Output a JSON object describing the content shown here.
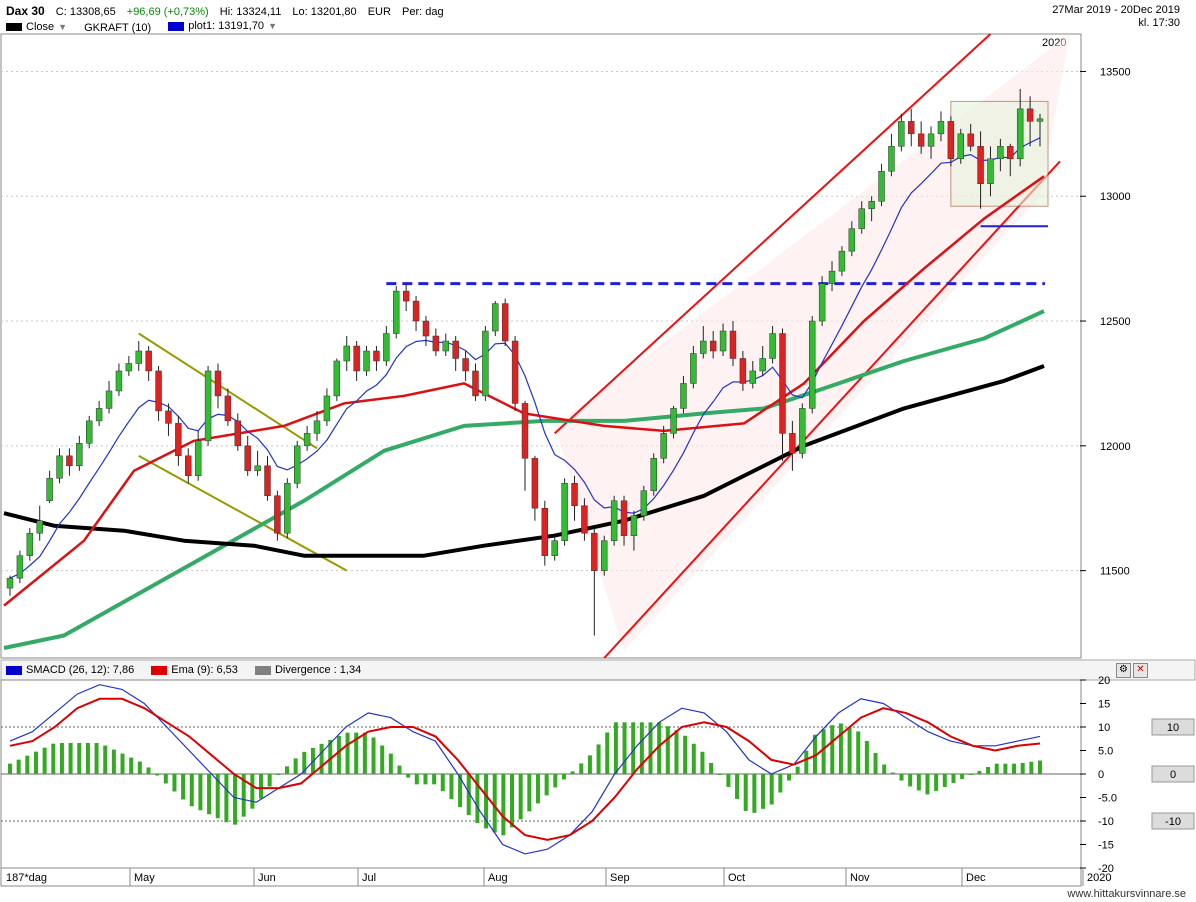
{
  "header": {
    "symbol": "Dax 30",
    "close": "C: 13308,65",
    "change": "+96,69 (+0,73%)",
    "high": "Hi: 13324,11",
    "low": "Lo: 13201,80",
    "currency": "EUR",
    "period": "Per: dag",
    "date_range": "27Mar 2019 - 20Dec 2019",
    "time": "kl. 17:30",
    "legend": [
      {
        "label": "Close",
        "color": "#000000",
        "dropdown": true
      },
      {
        "label": "GKRAFT (10)",
        "color": "",
        "dropdown": false
      },
      {
        "label": "plot1: 13191,70",
        "color": "#0000cc",
        "dropdown": true
      }
    ]
  },
  "sub_header": {
    "legend": [
      {
        "label": "SMACD (26, 12): 7,86",
        "color": "#0000cc"
      },
      {
        "label": "Ema (9): 6,53",
        "color": "#dd0000"
      },
      {
        "label": "Divergence : 1,34",
        "color": "#808080"
      }
    ]
  },
  "footer": {
    "text": "www.hittakursvinnare.se",
    "period_label": "187*dag"
  },
  "colors": {
    "up": "#33bb33",
    "down": "#dd2222",
    "ma200": "#000000",
    "ma100": "#33aa66",
    "ma50": "#dd1111",
    "blue": "#2222cc",
    "channel": "#ee1111",
    "olive": "#999900",
    "hist": "#33aa22"
  },
  "chart_data": [
    {
      "type": "candlestick",
      "x_axis": {
        "labels": [
          "May",
          "Jun",
          "Jul",
          "Aug",
          "Sep",
          "Oct",
          "Nov",
          "Dec",
          "2020"
        ]
      },
      "y_axis": {
        "ticks": [
          11500,
          12000,
          12500,
          13000,
          13500
        ],
        "range": [
          11150,
          13650
        ]
      },
      "year_marker": "2020",
      "support_line": 12650,
      "series": [
        {
          "name": "Close",
          "color": "#000000"
        },
        {
          "name": "plot1",
          "color": "#0000cc"
        }
      ],
      "moving_averages": {
        "ma200": [
          [
            0,
            11730
          ],
          [
            50,
            11680
          ],
          [
            120,
            11660
          ],
          [
            180,
            11620
          ],
          [
            250,
            11600
          ],
          [
            300,
            11560
          ],
          [
            350,
            11560
          ],
          [
            420,
            11560
          ],
          [
            480,
            11600
          ],
          [
            550,
            11640
          ],
          [
            620,
            11700
          ],
          [
            700,
            11800
          ],
          [
            800,
            12000
          ],
          [
            900,
            12150
          ],
          [
            1000,
            12260
          ],
          [
            1040,
            12320
          ]
        ],
        "ma100": [
          [
            0,
            11190
          ],
          [
            60,
            11240
          ],
          [
            140,
            11420
          ],
          [
            220,
            11600
          ],
          [
            300,
            11780
          ],
          [
            380,
            11980
          ],
          [
            460,
            12080
          ],
          [
            540,
            12100
          ],
          [
            620,
            12100
          ],
          [
            700,
            12130
          ],
          [
            760,
            12150
          ],
          [
            820,
            12230
          ],
          [
            900,
            12340
          ],
          [
            980,
            12430
          ],
          [
            1040,
            12540
          ]
        ],
        "ma50": [
          [
            0,
            11360
          ],
          [
            80,
            11620
          ],
          [
            130,
            11900
          ],
          [
            190,
            12020
          ],
          [
            280,
            12080
          ],
          [
            340,
            12170
          ],
          [
            400,
            12200
          ],
          [
            460,
            12250
          ],
          [
            520,
            12130
          ],
          [
            600,
            12080
          ],
          [
            660,
            12060
          ],
          [
            740,
            12090
          ],
          [
            800,
            12250
          ],
          [
            860,
            12500
          ],
          [
            920,
            12710
          ],
          [
            980,
            12910
          ],
          [
            1040,
            13080
          ]
        ]
      },
      "candles": [
        [
          11430,
          11470,
          11400,
          11480
        ],
        [
          11470,
          11560,
          11450,
          11580
        ],
        [
          11560,
          11650,
          11540,
          11670
        ],
        [
          11650,
          11700,
          11620,
          11760
        ],
        [
          11780,
          11870,
          11770,
          11900
        ],
        [
          11870,
          11960,
          11850,
          11990
        ],
        [
          11960,
          11920,
          11880,
          11990
        ],
        [
          11920,
          12010,
          11900,
          12040
        ],
        [
          12010,
          12100,
          11990,
          12120
        ],
        [
          12100,
          12150,
          12080,
          12180
        ],
        [
          12150,
          12220,
          12130,
          12260
        ],
        [
          12220,
          12300,
          12200,
          12330
        ],
        [
          12300,
          12330,
          12280,
          12360
        ],
        [
          12330,
          12380,
          12300,
          12420
        ],
        [
          12380,
          12300,
          12260,
          12400
        ],
        [
          12300,
          12140,
          12100,
          12320
        ],
        [
          12140,
          12090,
          12040,
          12170
        ],
        [
          12090,
          11960,
          11920,
          12120
        ],
        [
          11960,
          11880,
          11850,
          11990
        ],
        [
          11880,
          12020,
          11860,
          12060
        ],
        [
          12020,
          12300,
          12000,
          12320
        ],
        [
          12300,
          12200,
          12150,
          12330
        ],
        [
          12200,
          12100,
          12080,
          12230
        ],
        [
          12100,
          12000,
          11980,
          12130
        ],
        [
          12000,
          11900,
          11880,
          12040
        ],
        [
          11900,
          11920,
          11880,
          11980
        ],
        [
          11920,
          11800,
          11780,
          11960
        ],
        [
          11800,
          11650,
          11620,
          11820
        ],
        [
          11650,
          11850,
          11630,
          11870
        ],
        [
          11850,
          12000,
          11830,
          12020
        ],
        [
          12000,
          12050,
          11980,
          12080
        ],
        [
          12050,
          12100,
          12020,
          12140
        ],
        [
          12100,
          12200,
          12080,
          12230
        ],
        [
          12200,
          12340,
          12180,
          12350
        ],
        [
          12340,
          12400,
          12300,
          12440
        ],
        [
          12400,
          12300,
          12260,
          12420
        ],
        [
          12300,
          12380,
          12280,
          12400
        ],
        [
          12380,
          12340,
          12300,
          12400
        ],
        [
          12340,
          12450,
          12320,
          12480
        ],
        [
          12450,
          12620,
          12430,
          12640
        ],
        [
          12620,
          12580,
          12540,
          12650
        ],
        [
          12580,
          12500,
          12460,
          12600
        ],
        [
          12500,
          12440,
          12400,
          12520
        ],
        [
          12440,
          12380,
          12360,
          12470
        ],
        [
          12380,
          12420,
          12360,
          12450
        ],
        [
          12420,
          12350,
          12300,
          12440
        ],
        [
          12350,
          12300,
          12260,
          12380
        ],
        [
          12300,
          12200,
          12180,
          12330
        ],
        [
          12200,
          12460,
          12180,
          12480
        ],
        [
          12460,
          12570,
          12440,
          12580
        ],
        [
          12570,
          12420,
          12400,
          12590
        ],
        [
          12420,
          12170,
          12140,
          12440
        ],
        [
          12170,
          11950,
          11820,
          12180
        ],
        [
          11950,
          11750,
          11700,
          11960
        ],
        [
          11750,
          11560,
          11520,
          11780
        ],
        [
          11560,
          11620,
          11540,
          11640
        ],
        [
          11620,
          11850,
          11600,
          11870
        ],
        [
          11850,
          11760,
          11700,
          11880
        ],
        [
          11760,
          11650,
          11620,
          11790
        ],
        [
          11650,
          11500,
          11240,
          11670
        ],
        [
          11500,
          11620,
          11480,
          11640
        ],
        [
          11620,
          11780,
          11600,
          11800
        ],
        [
          11780,
          11640,
          11600,
          11800
        ],
        [
          11640,
          11720,
          11580,
          11740
        ],
        [
          11720,
          11820,
          11700,
          11840
        ],
        [
          11820,
          11950,
          11800,
          11970
        ],
        [
          11950,
          12050,
          11930,
          12080
        ],
        [
          12050,
          12150,
          12030,
          12160
        ],
        [
          12150,
          12250,
          12130,
          12280
        ],
        [
          12250,
          12370,
          12230,
          12400
        ],
        [
          12370,
          12420,
          12350,
          12480
        ],
        [
          12420,
          12380,
          12350,
          12460
        ],
        [
          12380,
          12460,
          12360,
          12490
        ],
        [
          12460,
          12350,
          12320,
          12500
        ],
        [
          12350,
          12250,
          12220,
          12380
        ],
        [
          12250,
          12300,
          12230,
          12340
        ],
        [
          12300,
          12350,
          12280,
          12400
        ],
        [
          12350,
          12450,
          12330,
          12480
        ],
        [
          12450,
          12050,
          11940,
          12470
        ],
        [
          12050,
          11970,
          11900,
          12100
        ],
        [
          11970,
          12150,
          11950,
          12170
        ],
        [
          12150,
          12500,
          12130,
          12520
        ],
        [
          12500,
          12650,
          12480,
          12680
        ],
        [
          12650,
          12700,
          12620,
          12740
        ],
        [
          12700,
          12780,
          12680,
          12800
        ],
        [
          12780,
          12870,
          12760,
          12900
        ],
        [
          12870,
          12950,
          12850,
          12980
        ],
        [
          12950,
          12980,
          12900,
          13000
        ],
        [
          12980,
          13100,
          12960,
          13130
        ],
        [
          13100,
          13200,
          13080,
          13250
        ],
        [
          13200,
          13300,
          13180,
          13330
        ],
        [
          13300,
          13250,
          13200,
          13350
        ],
        [
          13250,
          13200,
          13170,
          13300
        ],
        [
          13200,
          13250,
          13150,
          13280
        ],
        [
          13250,
          13300,
          13220,
          13340
        ],
        [
          13300,
          13150,
          13120,
          13320
        ],
        [
          13150,
          13250,
          13130,
          13270
        ],
        [
          13250,
          13200,
          13180,
          13290
        ],
        [
          13200,
          13050,
          12950,
          13260
        ],
        [
          13050,
          13150,
          13000,
          13200
        ],
        [
          13150,
          13200,
          13100,
          13230
        ],
        [
          13200,
          13150,
          13080,
          13210
        ],
        [
          13150,
          13350,
          13120,
          13430
        ],
        [
          13350,
          13300,
          13200,
          13400
        ],
        [
          13300,
          13310,
          13200,
          13330
        ]
      ]
    },
    {
      "type": "bar+line",
      "y_axis": {
        "ticks": [
          20,
          15,
          10,
          5.0,
          0,
          -5.0,
          -10,
          -15,
          -20
        ],
        "labels": [
          "20",
          "15",
          "10",
          "5.0",
          "0",
          "-5.0",
          "-10",
          "-15",
          "-20"
        ],
        "range": [
          -20,
          20
        ]
      },
      "series": [
        {
          "name": "SMACD (26, 12)",
          "color": "#0000cc",
          "values": [
            7,
            9,
            13,
            17,
            19,
            18,
            15,
            10,
            5,
            0,
            -5,
            -6,
            -3,
            0,
            5,
            10,
            13,
            12,
            9,
            7,
            0,
            -8,
            -15,
            -17,
            -16,
            -13,
            -8,
            0,
            6,
            11,
            14,
            13,
            9,
            3,
            0,
            2,
            8,
            13,
            16,
            15,
            12,
            9,
            7,
            6,
            6,
            7,
            8
          ]
        },
        {
          "name": "Ema (9)",
          "color": "#dd0000",
          "values": [
            6,
            7,
            10,
            14,
            16,
            16,
            14,
            11,
            8,
            4,
            0,
            -3,
            -3,
            -2,
            2,
            6,
            9,
            10,
            10,
            8,
            3,
            -3,
            -9,
            -13,
            -14,
            -13,
            -10,
            -5,
            1,
            6,
            10,
            11,
            10,
            7,
            3,
            2,
            4,
            8,
            12,
            14,
            13,
            11,
            8,
            6,
            5,
            6,
            6.5
          ]
        },
        {
          "name": "Divergence",
          "color": "#808080",
          "values": [
            1,
            2,
            3,
            3,
            3,
            2,
            1,
            -1,
            -3,
            -4,
            -5,
            -3,
            0,
            2,
            3,
            4,
            4,
            2,
            -1,
            -1,
            -3,
            -5,
            -6,
            -4,
            -2,
            0,
            2,
            5,
            5,
            5,
            4,
            2,
            -1,
            -4,
            -3,
            0,
            4,
            5,
            4,
            1,
            -1,
            -2,
            -1,
            0,
            1,
            1,
            1.3
          ]
        }
      ],
      "hlines": [
        10,
        -10
      ]
    }
  ]
}
